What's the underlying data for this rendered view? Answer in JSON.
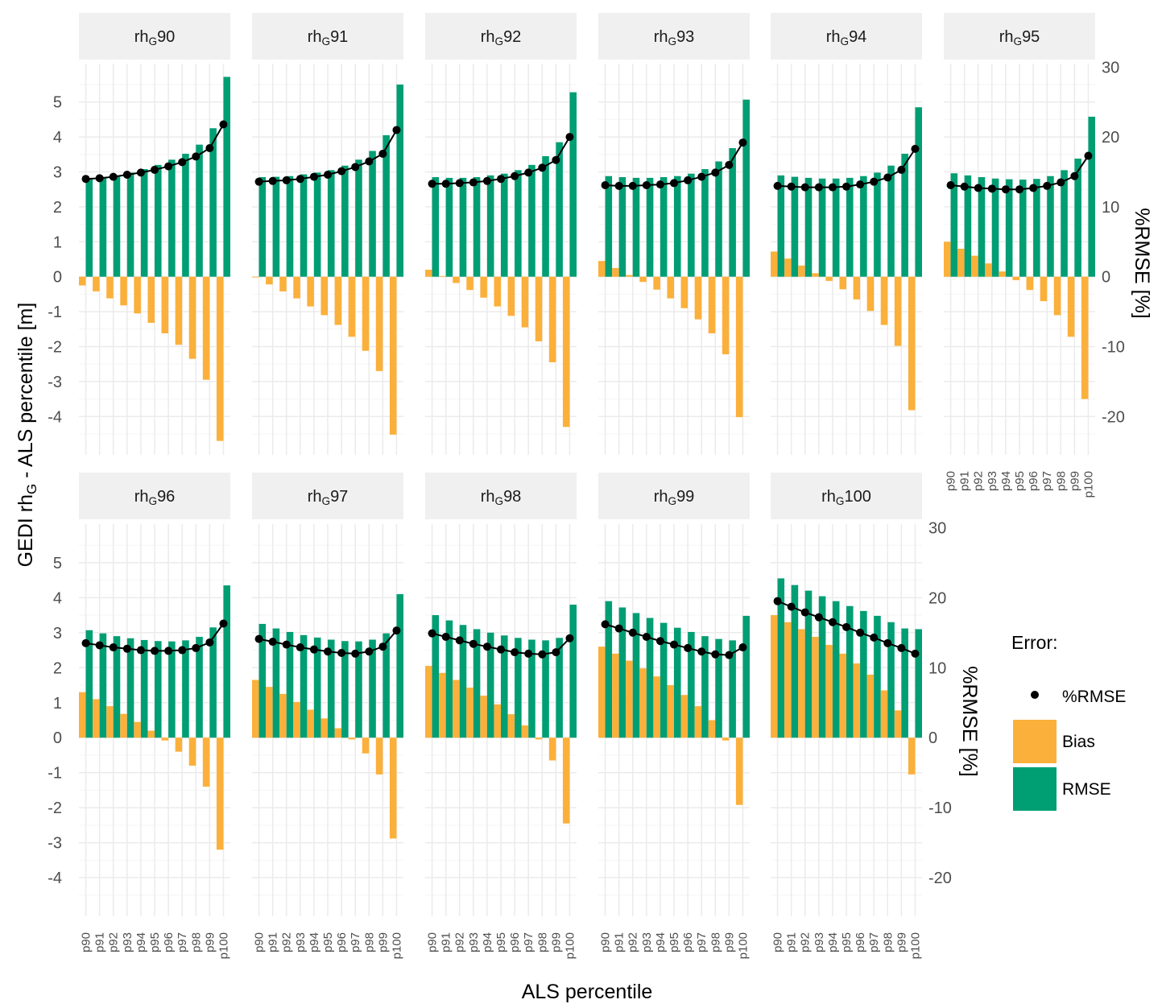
{
  "chart_data": {
    "type": "bar",
    "xlabel": "ALS percentile",
    "ylabel_prefix": "GEDI rh",
    "ylabel_sub": "G",
    "ylabel_suffix": " - ALS percentile [m]",
    "y2label": "%RMSE [%]",
    "ylim": [
      -5.1,
      6.1
    ],
    "y_ticks": [
      -4,
      -3,
      -2,
      -1,
      0,
      1,
      2,
      3,
      4,
      5
    ],
    "y2_ticks": [
      -20,
      -10,
      0,
      10,
      20,
      30
    ],
    "y2_per_y": 5,
    "categories": [
      "p90",
      "p91",
      "p92",
      "p93",
      "p94",
      "p95",
      "p96",
      "p97",
      "p98",
      "p99",
      "p100"
    ],
    "legend": {
      "title": "Error:",
      "items": [
        {
          "label": "%RMSE",
          "kind": "point"
        },
        {
          "label": "Bias",
          "kind": "bar"
        },
        {
          "label": "RMSE",
          "kind": "bar"
        }
      ]
    },
    "colors": {
      "bias": "#FBB03B",
      "rmse": "#009E73",
      "prmse": "#000000",
      "strip": "#F0F0F0",
      "grid": "#EBEBEB"
    },
    "panels": [
      {
        "title_prefix": "rh",
        "title_sub": "G",
        "title_suffix": "90",
        "bias": [
          -0.25,
          -0.42,
          -0.62,
          -0.82,
          -1.05,
          -1.32,
          -1.62,
          -1.95,
          -2.35,
          -2.95,
          -4.7
        ],
        "rmse": [
          2.8,
          2.85,
          2.9,
          2.98,
          3.08,
          3.2,
          3.35,
          3.52,
          3.78,
          4.25,
          5.72
        ],
        "prmse": [
          14,
          14.1,
          14.3,
          14.6,
          14.9,
          15.3,
          15.8,
          16.4,
          17.2,
          18.4,
          21.8
        ]
      },
      {
        "title_prefix": "rh",
        "title_sub": "G",
        "title_suffix": "91",
        "bias": [
          -0.02,
          -0.22,
          -0.42,
          -0.62,
          -0.85,
          -1.1,
          -1.38,
          -1.72,
          -2.12,
          -2.7,
          -4.52
        ],
        "rmse": [
          2.85,
          2.86,
          2.88,
          2.93,
          2.98,
          3.05,
          3.18,
          3.35,
          3.6,
          4.05,
          5.5
        ],
        "prmse": [
          13.6,
          13.7,
          13.8,
          14.0,
          14.3,
          14.6,
          15.1,
          15.7,
          16.5,
          17.6,
          21.0
        ]
      },
      {
        "title_prefix": "rh",
        "title_sub": "G",
        "title_suffix": "92",
        "bias": [
          0.2,
          0.02,
          -0.18,
          -0.38,
          -0.6,
          -0.85,
          -1.12,
          -1.45,
          -1.85,
          -2.45,
          -4.3
        ],
        "rmse": [
          2.85,
          2.83,
          2.83,
          2.85,
          2.9,
          2.95,
          3.05,
          3.2,
          3.45,
          3.85,
          5.28
        ],
        "prmse": [
          13.3,
          13.3,
          13.4,
          13.5,
          13.7,
          14.0,
          14.4,
          14.9,
          15.6,
          16.7,
          20.0
        ]
      },
      {
        "title_prefix": "rh",
        "title_sub": "G",
        "title_suffix": "93",
        "bias": [
          0.45,
          0.25,
          0.05,
          -0.15,
          -0.37,
          -0.62,
          -0.9,
          -1.22,
          -1.62,
          -2.22,
          -4.02
        ],
        "rmse": [
          2.88,
          2.85,
          2.83,
          2.83,
          2.85,
          2.88,
          2.95,
          3.08,
          3.3,
          3.68,
          5.07
        ],
        "prmse": [
          13.1,
          13.0,
          13.0,
          13.1,
          13.2,
          13.4,
          13.8,
          14.3,
          14.9,
          16.0,
          19.2
        ]
      },
      {
        "title_prefix": "rh",
        "title_sub": "G",
        "title_suffix": "94",
        "bias": [
          0.72,
          0.52,
          0.32,
          0.1,
          -0.12,
          -0.36,
          -0.65,
          -0.98,
          -1.38,
          -1.98,
          -3.82
        ],
        "rmse": [
          2.9,
          2.86,
          2.83,
          2.81,
          2.81,
          2.83,
          2.88,
          2.98,
          3.18,
          3.52,
          4.85
        ],
        "prmse": [
          13.0,
          12.9,
          12.8,
          12.8,
          12.8,
          12.9,
          13.2,
          13.6,
          14.2,
          15.3,
          18.3
        ]
      },
      {
        "title_prefix": "rh",
        "title_sub": "G",
        "title_suffix": "95",
        "bias": [
          1.0,
          0.8,
          0.6,
          0.38,
          0.15,
          -0.1,
          -0.38,
          -0.7,
          -1.1,
          -1.72,
          -3.5
        ],
        "rmse": [
          2.96,
          2.9,
          2.85,
          2.81,
          2.79,
          2.78,
          2.8,
          2.88,
          3.05,
          3.38,
          4.58
        ],
        "prmse": [
          13.1,
          12.9,
          12.7,
          12.6,
          12.5,
          12.5,
          12.7,
          13.0,
          13.5,
          14.4,
          17.3
        ]
      },
      {
        "title_prefix": "rh",
        "title_sub": "G",
        "title_suffix": "96",
        "bias": [
          1.3,
          1.1,
          0.9,
          0.68,
          0.45,
          0.2,
          -0.08,
          -0.4,
          -0.8,
          -1.4,
          -3.2
        ],
        "rmse": [
          3.07,
          2.98,
          2.9,
          2.84,
          2.79,
          2.76,
          2.75,
          2.78,
          2.88,
          3.15,
          4.35
        ],
        "prmse": [
          13.5,
          13.2,
          12.9,
          12.7,
          12.5,
          12.4,
          12.4,
          12.5,
          12.8,
          13.6,
          16.3
        ]
      },
      {
        "title_prefix": "rh",
        "title_sub": "G",
        "title_suffix": "97",
        "bias": [
          1.65,
          1.45,
          1.25,
          1.02,
          0.8,
          0.55,
          0.27,
          -0.05,
          -0.45,
          -1.05,
          -2.88
        ],
        "rmse": [
          3.25,
          3.12,
          3.02,
          2.93,
          2.86,
          2.8,
          2.76,
          2.75,
          2.8,
          2.98,
          4.1
        ],
        "prmse": [
          14.1,
          13.7,
          13.3,
          12.9,
          12.6,
          12.3,
          12.1,
          12.0,
          12.3,
          13.0,
          15.3
        ]
      },
      {
        "title_prefix": "rh",
        "title_sub": "G",
        "title_suffix": "98",
        "bias": [
          2.05,
          1.85,
          1.65,
          1.43,
          1.2,
          0.95,
          0.67,
          0.35,
          -0.05,
          -0.65,
          -2.45
        ],
        "rmse": [
          3.5,
          3.35,
          3.22,
          3.1,
          3.0,
          2.92,
          2.85,
          2.8,
          2.78,
          2.85,
          3.8
        ],
        "prmse": [
          14.9,
          14.4,
          13.9,
          13.4,
          13.0,
          12.6,
          12.2,
          12.0,
          11.9,
          12.2,
          14.2
        ]
      },
      {
        "title_prefix": "rh",
        "title_sub": "G",
        "title_suffix": "99",
        "bias": [
          2.6,
          2.4,
          2.2,
          1.98,
          1.75,
          1.5,
          1.22,
          0.9,
          0.5,
          -0.08,
          -1.92
        ],
        "rmse": [
          3.9,
          3.72,
          3.56,
          3.42,
          3.28,
          3.14,
          3.02,
          2.9,
          2.82,
          2.78,
          3.48
        ],
        "prmse": [
          16.2,
          15.6,
          15.0,
          14.4,
          13.8,
          13.3,
          12.8,
          12.3,
          11.9,
          11.8,
          12.9
        ]
      },
      {
        "title_prefix": "rh",
        "title_sub": "G",
        "title_suffix": "100",
        "bias": [
          3.5,
          3.3,
          3.1,
          2.88,
          2.65,
          2.4,
          2.12,
          1.8,
          1.35,
          0.78,
          -1.05
        ],
        "rmse": [
          4.55,
          4.36,
          4.2,
          4.04,
          3.9,
          3.76,
          3.62,
          3.48,
          3.3,
          3.12,
          3.1
        ],
        "prmse": [
          19.5,
          18.7,
          17.9,
          17.2,
          16.5,
          15.8,
          15.0,
          14.3,
          13.5,
          12.8,
          12.0
        ]
      }
    ]
  }
}
